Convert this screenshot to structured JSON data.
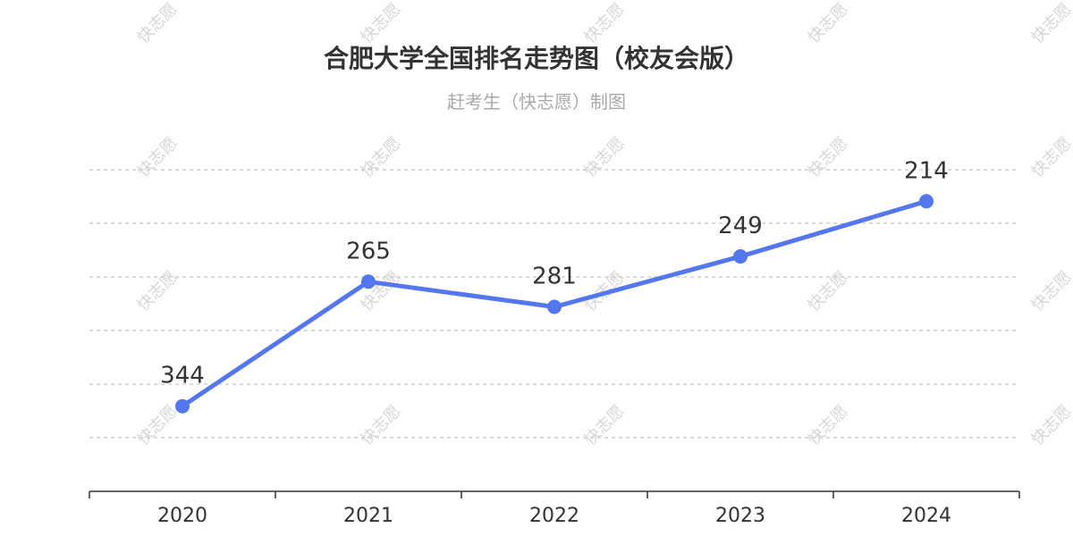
{
  "title": "合肥大学全国排名走势图（校友会版）",
  "subtitle": "赶考生（快志愿）制图",
  "watermark_text": "快志愿",
  "colors": {
    "line": "#5577ee",
    "grid": "#bbbbbb",
    "axis": "#333333",
    "title": "#333333",
    "subtitle": "#aaaaaa"
  },
  "chart_data": {
    "type": "line",
    "categories": [
      "2020",
      "2021",
      "2022",
      "2023",
      "2024"
    ],
    "values": [
      344,
      265,
      281,
      249,
      214
    ],
    "y_inverted": true,
    "ylim": [
      364,
      194
    ],
    "grid": true,
    "y_tick_labels_shown": false
  }
}
